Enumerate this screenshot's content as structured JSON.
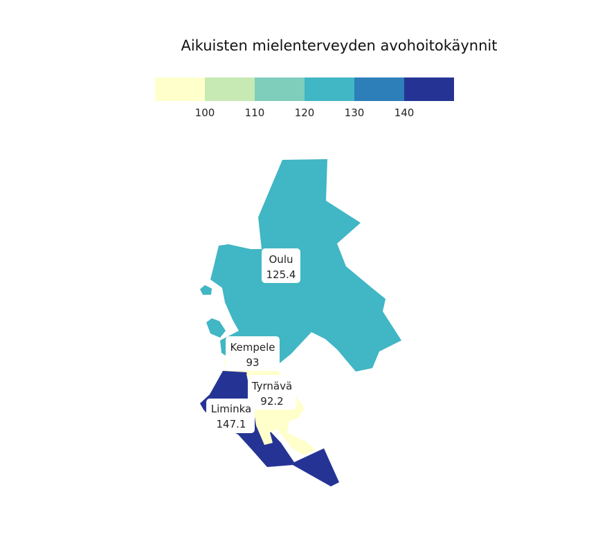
{
  "title": "Aikuisten mielenterveyden avohoitokäynnit",
  "legend": {
    "bins": [
      {
        "color": "#ffffcc"
      },
      {
        "color": "#c7e9b4"
      },
      {
        "color": "#7fcdbb"
      },
      {
        "color": "#41b6c4"
      },
      {
        "color": "#2c7fb8"
      },
      {
        "color": "#253494"
      }
    ],
    "ticks": [
      "100",
      "110",
      "120",
      "130",
      "140"
    ]
  },
  "regions": [
    {
      "name": "Oulu",
      "value": "125.4",
      "color": "#41b6c4"
    },
    {
      "name": "Kempele",
      "value": "93",
      "color": "#ffffcc"
    },
    {
      "name": "Tyrnävä",
      "value": "92.2",
      "color": "#ffffcc"
    },
    {
      "name": "Liminka",
      "value": "147.1",
      "color": "#253494"
    }
  ]
}
